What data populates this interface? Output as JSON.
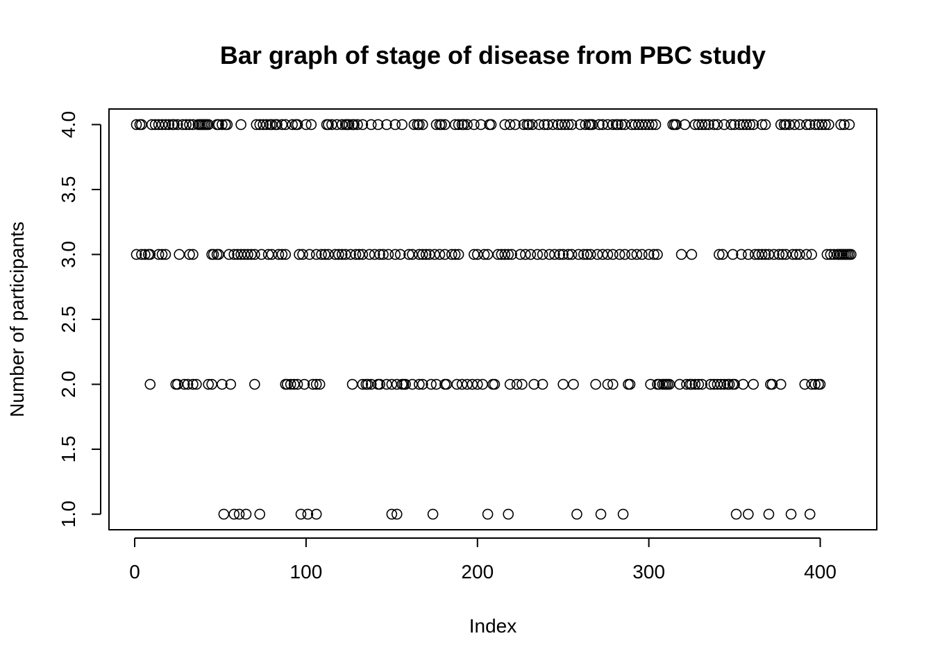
{
  "chart_data": {
    "type": "scatter",
    "title": "Bar graph of stage of disease from PBC study",
    "xlabel": "Index",
    "ylabel": "Number of participants",
    "xlim": [
      -15,
      433
    ],
    "ylim": [
      0.88,
      4.12
    ],
    "x_ticks": [
      0,
      100,
      200,
      300,
      400
    ],
    "y_ticks": [
      1.0,
      1.5,
      2.0,
      2.5,
      3.0,
      3.5,
      4.0
    ],
    "x_tick_labels": [
      "0",
      "100",
      "200",
      "300",
      "400"
    ],
    "y_tick_labels": [
      "1.0",
      "1.5",
      "2.0",
      "2.5",
      "3.0",
      "3.5",
      "4.0"
    ],
    "grid": false,
    "legend": "none",
    "marker": "open-circle",
    "series": [
      {
        "x": [
          1,
          3,
          4,
          10,
          12,
          14,
          16,
          18,
          20,
          22,
          23,
          25,
          28,
          30,
          32,
          34,
          37,
          38,
          39,
          40,
          41,
          42,
          43,
          48,
          49,
          51,
          53,
          54,
          62,
          71,
          73,
          75,
          77,
          79,
          80,
          82,
          83,
          86,
          88,
          92,
          94,
          95,
          100,
          103,
          112,
          113,
          115,
          118,
          121,
          123,
          124,
          125,
          127,
          128,
          130,
          133,
          138,
          142,
          147,
          152,
          156,
          163,
          165,
          166,
          168,
          176,
          178,
          179,
          181,
          187,
          189,
          191,
          192,
          194,
          198,
          202,
          207,
          208,
          216,
          219,
          222,
          227,
          229,
          230,
          232,
          236,
          239,
          241,
          244,
          247,
          249,
          251,
          253,
          255,
          260,
          263,
          265,
          266,
          267,
          271,
          273,
          276,
          279,
          281,
          282,
          284,
          286,
          290,
          292,
          294,
          296,
          298,
          300,
          302,
          304,
          314,
          315,
          316,
          321,
          327,
          329,
          331,
          333,
          335,
          338,
          340,
          344,
          348,
          350,
          353,
          355,
          357,
          359,
          361,
          366,
          368,
          377,
          379,
          380,
          382,
          385,
          388,
          392,
          394,
          397,
          399,
          401,
          403,
          405,
          412,
          414,
          417
        ],
        "y": [
          4,
          4,
          4,
          4,
          4,
          4,
          4,
          4,
          4,
          4,
          4,
          4,
          4,
          4,
          4,
          4,
          4,
          4,
          4,
          4,
          4,
          4,
          4,
          4,
          4,
          4,
          4,
          4,
          4,
          4,
          4,
          4,
          4,
          4,
          4,
          4,
          4,
          4,
          4,
          4,
          4,
          4,
          4,
          4,
          4,
          4,
          4,
          4,
          4,
          4,
          4,
          4,
          4,
          4,
          4,
          4,
          4,
          4,
          4,
          4,
          4,
          4,
          4,
          4,
          4,
          4,
          4,
          4,
          4,
          4,
          4,
          4,
          4,
          4,
          4,
          4,
          4,
          4,
          4,
          4,
          4,
          4,
          4,
          4,
          4,
          4,
          4,
          4,
          4,
          4,
          4,
          4,
          4,
          4,
          4,
          4,
          4,
          4,
          4,
          4,
          4,
          4,
          4,
          4,
          4,
          4,
          4,
          4,
          4,
          4,
          4,
          4,
          4,
          4,
          4,
          4,
          4,
          4,
          4,
          4,
          4,
          4,
          4,
          4,
          4,
          4,
          4,
          4,
          4,
          4,
          4,
          4,
          4,
          4,
          4,
          4,
          4,
          4,
          4,
          4,
          4,
          4,
          4,
          4,
          4,
          4,
          4,
          4,
          4,
          4,
          4,
          4
        ]
      },
      {
        "x": [
          1,
          4,
          6,
          8,
          9,
          14,
          16,
          18,
          26,
          32,
          34,
          45,
          46,
          48,
          49,
          55,
          58,
          60,
          62,
          64,
          66,
          68,
          70,
          74,
          78,
          80,
          84,
          86,
          88,
          96,
          98,
          102,
          106,
          109,
          111,
          113,
          117,
          119,
          121,
          123,
          126,
          129,
          131,
          133,
          137,
          140,
          143,
          145,
          148,
          152,
          155,
          160,
          162,
          166,
          168,
          170,
          172,
          175,
          178,
          181,
          185,
          187,
          189,
          198,
          200,
          204,
          206,
          212,
          214,
          216,
          218,
          220,
          225,
          228,
          231,
          235,
          238,
          242,
          245,
          248,
          250,
          253,
          255,
          259,
          262,
          264,
          266,
          270,
          273,
          276,
          279,
          283,
          286,
          290,
          293,
          296,
          300,
          303,
          305,
          319,
          325,
          341,
          343,
          349,
          354,
          358,
          362,
          364,
          366,
          368,
          370,
          373,
          376,
          378,
          380,
          384,
          386,
          388,
          392,
          395,
          404,
          406,
          408,
          410,
          411,
          412,
          413,
          414,
          415,
          416,
          417,
          418
        ],
        "y": [
          3,
          3,
          3,
          3,
          3,
          3,
          3,
          3,
          3,
          3,
          3,
          3,
          3,
          3,
          3,
          3,
          3,
          3,
          3,
          3,
          3,
          3,
          3,
          3,
          3,
          3,
          3,
          3,
          3,
          3,
          3,
          3,
          3,
          3,
          3,
          3,
          3,
          3,
          3,
          3,
          3,
          3,
          3,
          3,
          3,
          3,
          3,
          3,
          3,
          3,
          3,
          3,
          3,
          3,
          3,
          3,
          3,
          3,
          3,
          3,
          3,
          3,
          3,
          3,
          3,
          3,
          3,
          3,
          3,
          3,
          3,
          3,
          3,
          3,
          3,
          3,
          3,
          3,
          3,
          3,
          3,
          3,
          3,
          3,
          3,
          3,
          3,
          3,
          3,
          3,
          3,
          3,
          3,
          3,
          3,
          3,
          3,
          3,
          3,
          3,
          3,
          3,
          3,
          3,
          3,
          3,
          3,
          3,
          3,
          3,
          3,
          3,
          3,
          3,
          3,
          3,
          3,
          3,
          3,
          3,
          3,
          3,
          3,
          3,
          3,
          3,
          3,
          3,
          3,
          3,
          3,
          3
        ]
      },
      {
        "x": [
          9,
          24,
          25,
          29,
          31,
          34,
          36,
          43,
          45,
          51,
          56,
          70,
          88,
          89,
          91,
          93,
          95,
          99,
          104,
          106,
          108,
          127,
          133,
          135,
          136,
          138,
          142,
          143,
          147,
          150,
          153,
          156,
          157,
          158,
          162,
          166,
          168,
          173,
          176,
          181,
          182,
          188,
          191,
          194,
          197,
          200,
          203,
          209,
          210,
          219,
          223,
          226,
          233,
          238,
          250,
          256,
          269,
          276,
          279,
          288,
          289,
          301,
          305,
          306,
          308,
          309,
          310,
          311,
          312,
          318,
          322,
          324,
          325,
          327,
          329,
          331,
          336,
          338,
          340,
          342,
          344,
          346,
          347,
          349,
          350,
          355,
          361,
          371,
          372,
          377,
          391,
          395,
          397,
          399,
          400
        ],
        "y": [
          2,
          2,
          2,
          2,
          2,
          2,
          2,
          2,
          2,
          2,
          2,
          2,
          2,
          2,
          2,
          2,
          2,
          2,
          2,
          2,
          2,
          2,
          2,
          2,
          2,
          2,
          2,
          2,
          2,
          2,
          2,
          2,
          2,
          2,
          2,
          2,
          2,
          2,
          2,
          2,
          2,
          2,
          2,
          2,
          2,
          2,
          2,
          2,
          2,
          2,
          2,
          2,
          2,
          2,
          2,
          2,
          2,
          2,
          2,
          2,
          2,
          2,
          2,
          2,
          2,
          2,
          2,
          2,
          2,
          2,
          2,
          2,
          2,
          2,
          2,
          2,
          2,
          2,
          2,
          2,
          2,
          2,
          2,
          2,
          2,
          2,
          2,
          2,
          2,
          2,
          2,
          2,
          2,
          2,
          2
        ]
      },
      {
        "x": [
          52,
          58,
          61,
          65,
          73,
          97,
          101,
          106,
          150,
          153,
          174,
          206,
          218,
          258,
          272,
          285,
          351,
          358,
          370,
          383,
          394
        ],
        "y": [
          1,
          1,
          1,
          1,
          1,
          1,
          1,
          1,
          1,
          1,
          1,
          1,
          1,
          1,
          1,
          1,
          1,
          1,
          1,
          1,
          1
        ]
      }
    ]
  }
}
